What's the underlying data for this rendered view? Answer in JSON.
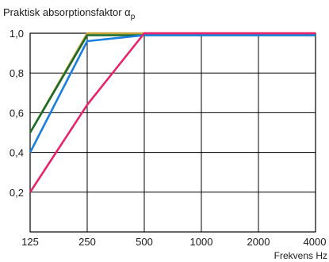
{
  "chart_data": {
    "type": "line",
    "ylabel": "Praktisk absorptionsfaktor α",
    "ylabel_subscript": "p",
    "xlabel": "Frekvens Hz",
    "categories": [
      "125",
      "250",
      "500",
      "1000",
      "2000",
      "4000"
    ],
    "y_ticks": [
      "0,2",
      "0,4",
      "0,6",
      "0,8",
      "1,0"
    ],
    "y_tick_values": [
      0.2,
      0.4,
      0.6,
      0.8,
      1.0
    ],
    "ylim": [
      0,
      1.0
    ],
    "grid": true,
    "series": [
      {
        "color": "#e8226a",
        "values": [
          0.2,
          0.64,
          1.0,
          1.0,
          1.0,
          1.0
        ]
      },
      {
        "color": "#1a7ee0",
        "values": [
          0.4,
          0.96,
          0.99,
          0.99,
          0.99,
          0.99
        ]
      },
      {
        "color": "#1a6b2a",
        "values": [
          0.5,
          0.99,
          0.99,
          0.99,
          0.99,
          0.99
        ]
      },
      {
        "color": "#c8a23a",
        "values": [
          0.5,
          1.0,
          1.0,
          1.0,
          1.0,
          1.0
        ]
      }
    ]
  }
}
